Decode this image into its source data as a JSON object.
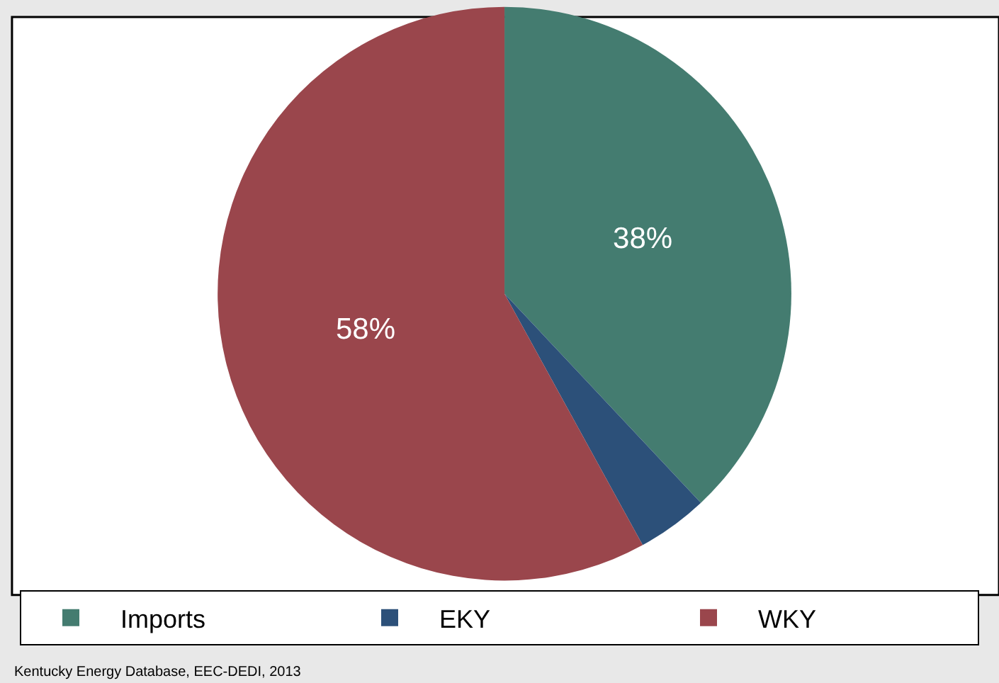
{
  "chart_data": {
    "type": "pie",
    "categories": [
      "Imports",
      "EKY",
      "WKY"
    ],
    "values": [
      38,
      4,
      58
    ],
    "colors": [
      "#447c70",
      "#2c5079",
      "#9a464c"
    ],
    "value_labels": [
      "38%",
      null,
      "58%"
    ],
    "legend": "bottom",
    "annotations": [
      "Kentucky Energy Database, EEC-DEDI, 2013"
    ]
  }
}
